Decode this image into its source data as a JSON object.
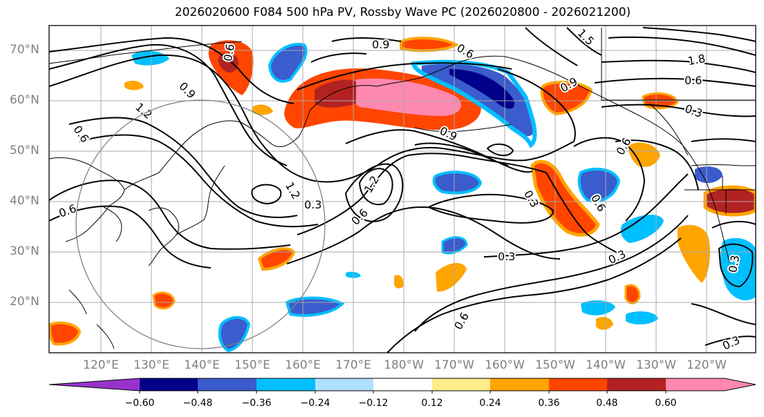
{
  "title": "2026020600 F084 500 hPa PV, Rossby Wave PC (2026020800 - 2026021200)",
  "lat_labels": [
    "70°N",
    "60°N",
    "50°N",
    "40°N",
    "30°N",
    "20°N"
  ],
  "lon_labels": [
    "120°E",
    "130°E",
    "140°E",
    "150°E",
    "160°E",
    "170°E",
    "180°W",
    "170°W",
    "160°W",
    "150°W",
    "140°W",
    "130°W",
    "120°W"
  ],
  "contour_labels": [
    "0.9",
    "0.6",
    "0.9",
    "1.2",
    "0.6",
    "0.6",
    "1.2",
    "1.2",
    "0.6",
    "0.9",
    "0.9",
    "0.3",
    "0.6",
    "0.3",
    "0.6",
    "0.3",
    "0.3",
    "0.6",
    "0.3",
    "1.5",
    "1.8",
    "0.6",
    "0.3",
    "0.6",
    "0.3"
  ],
  "colorbar": {
    "ticks": [
      "−0.60",
      "−0.48",
      "−0.36",
      "−0.24",
      "−0.12",
      "0.12",
      "0.24",
      "0.36",
      "0.48",
      "0.60"
    ],
    "colors": [
      "#9932cc",
      "#00008b",
      "#3a5ccc",
      "#00bfff",
      "#aee0ff",
      "#ffffff",
      "#ffeb8a",
      "#ffa500",
      "#ff4500",
      "#b22222",
      "#ff88b0"
    ]
  },
  "shading_colors": {
    "neg_strong": "#00008b",
    "neg_med": "#3a5ccc",
    "neg_weak": "#00bfff",
    "neg_faint": "#aee0ff",
    "pos_faint": "#ffeb8a",
    "pos_weak": "#ffa500",
    "pos_med": "#ff4500",
    "pos_strong": "#b22222",
    "pos_max": "#ff88b0",
    "neg_max": "#9932cc"
  }
}
